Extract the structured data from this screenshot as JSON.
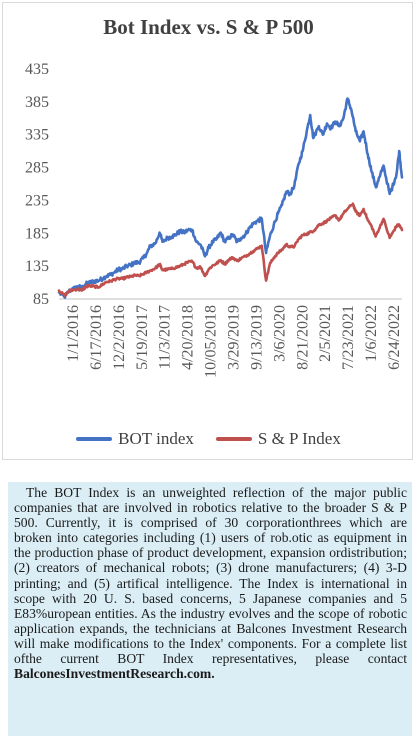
{
  "chart_data": {
    "type": "line",
    "title": "Bot Index vs. S & P 500",
    "xlabel": "",
    "ylabel": "",
    "ylim": [
      85,
      435
    ],
    "yticks": [
      85,
      135,
      185,
      235,
      285,
      335,
      385,
      435
    ],
    "xtick_labels": [
      "1/1/2016",
      "6/17/2016",
      "12/2/2016",
      "5/19/2017",
      "11/3/2017",
      "4/20/2018",
      "10/05/2018",
      "3/29/2019",
      "9/13/2019",
      "3/6/2020",
      "8/21/2020",
      "2/5/2021",
      "7/23/2021",
      "1/6/2022",
      "6/24/2022"
    ],
    "x_start": "2016-01-01",
    "x_end": "2022-12-31",
    "legend_position": "bottom",
    "series": [
      {
        "name": "BOT index",
        "color": "#4472c4",
        "points": [
          [
            "2016-01-01",
            95
          ],
          [
            "2016-02-10",
            88
          ],
          [
            "2016-03-15",
            97
          ],
          [
            "2016-04-15",
            100
          ],
          [
            "2016-05-20",
            104
          ],
          [
            "2016-06-20",
            102
          ],
          [
            "2016-07-20",
            108
          ],
          [
            "2016-08-20",
            110
          ],
          [
            "2016-09-20",
            112
          ],
          [
            "2016-10-20",
            113
          ],
          [
            "2016-11-20",
            116
          ],
          [
            "2016-12-20",
            120
          ],
          [
            "2017-01-20",
            122
          ],
          [
            "2017-02-20",
            126
          ],
          [
            "2017-03-20",
            130
          ],
          [
            "2017-04-20",
            131
          ],
          [
            "2017-05-20",
            135
          ],
          [
            "2017-06-20",
            137
          ],
          [
            "2017-07-20",
            140
          ],
          [
            "2017-08-20",
            141
          ],
          [
            "2017-09-20",
            147
          ],
          [
            "2017-10-20",
            156
          ],
          [
            "2017-11-10",
            165
          ],
          [
            "2017-12-20",
            170
          ],
          [
            "2018-01-20",
            186
          ],
          [
            "2018-02-10",
            172
          ],
          [
            "2018-03-20",
            178
          ],
          [
            "2018-04-20",
            180
          ],
          [
            "2018-05-20",
            183
          ],
          [
            "2018-06-20",
            188
          ],
          [
            "2018-07-20",
            186
          ],
          [
            "2018-08-20",
            190
          ],
          [
            "2018-09-20",
            190
          ],
          [
            "2018-10-20",
            172
          ],
          [
            "2018-11-20",
            168
          ],
          [
            "2018-12-24",
            150
          ],
          [
            "2019-01-20",
            163
          ],
          [
            "2019-02-20",
            172
          ],
          [
            "2019-03-20",
            176
          ],
          [
            "2019-04-20",
            186
          ],
          [
            "2019-05-20",
            172
          ],
          [
            "2019-06-20",
            178
          ],
          [
            "2019-07-20",
            183
          ],
          [
            "2019-08-20",
            172
          ],
          [
            "2019-09-20",
            178
          ],
          [
            "2019-10-20",
            183
          ],
          [
            "2019-11-20",
            193
          ],
          [
            "2019-12-20",
            200
          ],
          [
            "2020-01-20",
            204
          ],
          [
            "2020-02-20",
            207
          ],
          [
            "2020-03-23",
            155
          ],
          [
            "2020-04-20",
            180
          ],
          [
            "2020-05-20",
            198
          ],
          [
            "2020-06-20",
            215
          ],
          [
            "2020-07-20",
            228
          ],
          [
            "2020-08-20",
            248
          ],
          [
            "2020-09-20",
            245
          ],
          [
            "2020-10-20",
            258
          ],
          [
            "2020-11-20",
            290
          ],
          [
            "2020-12-20",
            310
          ],
          [
            "2021-01-20",
            340
          ],
          [
            "2021-02-15",
            365
          ],
          [
            "2021-03-10",
            330
          ],
          [
            "2021-04-20",
            348
          ],
          [
            "2021-05-20",
            335
          ],
          [
            "2021-06-20",
            352
          ],
          [
            "2021-07-20",
            345
          ],
          [
            "2021-08-20",
            355
          ],
          [
            "2021-09-20",
            348
          ],
          [
            "2021-10-20",
            360
          ],
          [
            "2021-11-20",
            390
          ],
          [
            "2021-12-20",
            372
          ],
          [
            "2022-01-20",
            340
          ],
          [
            "2022-02-20",
            325
          ],
          [
            "2022-03-20",
            340
          ],
          [
            "2022-04-20",
            305
          ],
          [
            "2022-05-20",
            278
          ],
          [
            "2022-06-20",
            255
          ],
          [
            "2022-07-20",
            272
          ],
          [
            "2022-08-15",
            288
          ],
          [
            "2022-09-30",
            245
          ],
          [
            "2022-10-20",
            255
          ],
          [
            "2022-11-20",
            275
          ],
          [
            "2022-12-10",
            310
          ],
          [
            "2022-12-31",
            270
          ]
        ]
      },
      {
        "name": "S & P Index",
        "color": "#c0504d",
        "points": [
          [
            "2016-01-01",
            98
          ],
          [
            "2016-02-10",
            90
          ],
          [
            "2016-03-15",
            97
          ],
          [
            "2016-04-15",
            99
          ],
          [
            "2016-05-20",
            100
          ],
          [
            "2016-06-20",
            98
          ],
          [
            "2016-07-20",
            104
          ],
          [
            "2016-08-20",
            105
          ],
          [
            "2016-09-20",
            104
          ],
          [
            "2016-10-20",
            103
          ],
          [
            "2016-11-20",
            107
          ],
          [
            "2016-12-20",
            111
          ],
          [
            "2017-01-20",
            112
          ],
          [
            "2017-02-20",
            115
          ],
          [
            "2017-03-20",
            116
          ],
          [
            "2017-04-20",
            116
          ],
          [
            "2017-05-20",
            118
          ],
          [
            "2017-06-20",
            119
          ],
          [
            "2017-07-20",
            121
          ],
          [
            "2017-08-20",
            120
          ],
          [
            "2017-09-20",
            123
          ],
          [
            "2017-10-20",
            126
          ],
          [
            "2017-11-20",
            129
          ],
          [
            "2017-12-20",
            132
          ],
          [
            "2018-01-20",
            138
          ],
          [
            "2018-02-10",
            129
          ],
          [
            "2018-03-20",
            130
          ],
          [
            "2018-04-20",
            131
          ],
          [
            "2018-05-20",
            133
          ],
          [
            "2018-06-20",
            135
          ],
          [
            "2018-07-20",
            138
          ],
          [
            "2018-08-20",
            141
          ],
          [
            "2018-09-20",
            142
          ],
          [
            "2018-10-20",
            132
          ],
          [
            "2018-11-20",
            134
          ],
          [
            "2018-12-24",
            120
          ],
          [
            "2019-01-20",
            130
          ],
          [
            "2019-02-20",
            136
          ],
          [
            "2019-03-20",
            139
          ],
          [
            "2019-04-20",
            144
          ],
          [
            "2019-05-20",
            138
          ],
          [
            "2019-06-20",
            145
          ],
          [
            "2019-07-20",
            148
          ],
          [
            "2019-08-20",
            143
          ],
          [
            "2019-09-20",
            147
          ],
          [
            "2019-10-20",
            150
          ],
          [
            "2019-11-20",
            154
          ],
          [
            "2019-12-20",
            158
          ],
          [
            "2020-01-20",
            162
          ],
          [
            "2020-02-20",
            166
          ],
          [
            "2020-03-23",
            113
          ],
          [
            "2020-04-20",
            138
          ],
          [
            "2020-05-20",
            148
          ],
          [
            "2020-06-20",
            155
          ],
          [
            "2020-07-20",
            160
          ],
          [
            "2020-08-20",
            168
          ],
          [
            "2020-09-20",
            164
          ],
          [
            "2020-10-20",
            165
          ],
          [
            "2020-11-20",
            176
          ],
          [
            "2020-12-20",
            182
          ],
          [
            "2021-01-20",
            184
          ],
          [
            "2021-02-20",
            187
          ],
          [
            "2021-03-20",
            190
          ],
          [
            "2021-04-20",
            198
          ],
          [
            "2021-05-20",
            200
          ],
          [
            "2021-06-20",
            204
          ],
          [
            "2021-07-20",
            208
          ],
          [
            "2021-08-20",
            212
          ],
          [
            "2021-09-20",
            205
          ],
          [
            "2021-10-20",
            215
          ],
          [
            "2021-11-20",
            222
          ],
          [
            "2021-12-30",
            230
          ],
          [
            "2022-01-20",
            218
          ],
          [
            "2022-02-20",
            212
          ],
          [
            "2022-03-20",
            222
          ],
          [
            "2022-04-20",
            205
          ],
          [
            "2022-05-20",
            195
          ],
          [
            "2022-06-17",
            180
          ],
          [
            "2022-07-20",
            195
          ],
          [
            "2022-08-15",
            207
          ],
          [
            "2022-09-30",
            178
          ],
          [
            "2022-10-20",
            185
          ],
          [
            "2022-11-20",
            196
          ],
          [
            "2022-12-10",
            198
          ],
          [
            "2022-12-31",
            190
          ]
        ]
      }
    ]
  },
  "legend": {
    "items": [
      "BOT index",
      "S & P Index"
    ]
  },
  "description": {
    "text": "The BOT Index is an unweighted reflection of the major public companies that are involved in robotics relative to the broader S & P 500. Currently, it is comprised of 30 corporationthrees which are broken into categories including (1) users of rob.otic as equipment in the production phase of product development, expansion ordistribution; (2) creators of mechanical robots; (3) drone manufacturers; (4) 3-D printing; and (5) artifical intelligence. The Index is international in scope with 20 U. S. based concerns, 5 Japanese companies and 5 E83%uropean entities. As the industry evolves and the scope of robotic application expands, the technicians at Balcones Investment Research will make modifications to the Index' components. For a complete list ofthe current BOT Index representatives, please contact",
    "link_text": "BalconesInvestmentResearch.com."
  },
  "colors": {
    "bot": "#4472c4",
    "sp": "#c0504d",
    "desc_background": "#dbeef6"
  }
}
